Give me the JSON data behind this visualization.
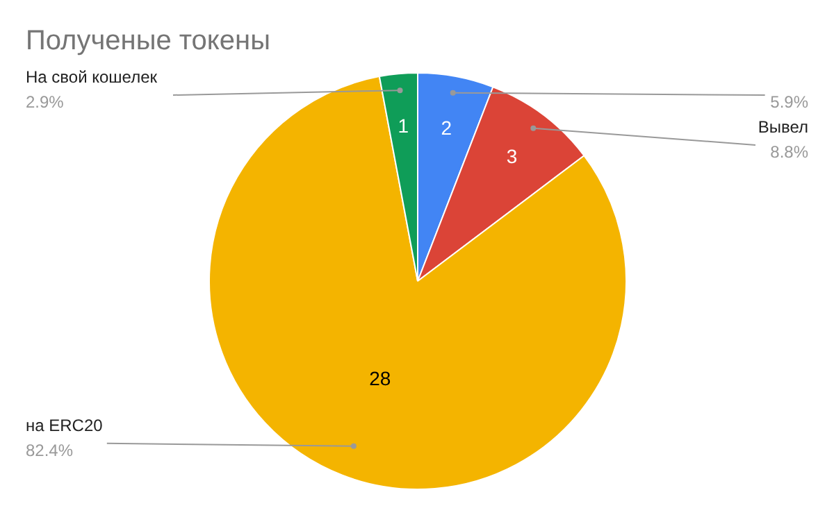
{
  "chart_data": {
    "type": "pie",
    "title": "Полученые токены",
    "categories": [
      null,
      "Вывел",
      "на ERC20",
      "На свой кошелек"
    ],
    "values": [
      2,
      3,
      28,
      1
    ],
    "colors": [
      "#4285f4",
      "#db4437",
      "#f4b400",
      "#0f9d58"
    ],
    "data_labels": true,
    "annotations": [
      "5.9%",
      "8.8%",
      "82.4%",
      "2.9%"
    ]
  }
}
